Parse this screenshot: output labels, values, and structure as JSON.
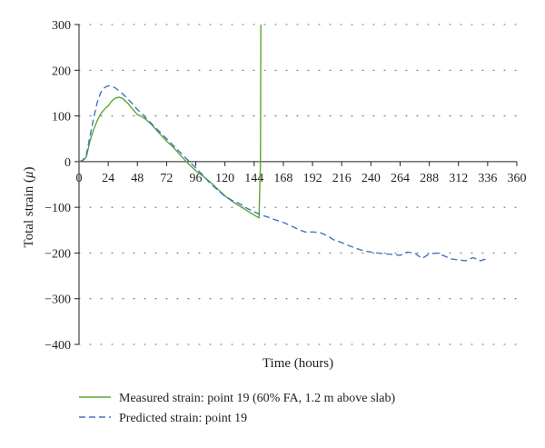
{
  "chart_data": {
    "type": "line",
    "title": "",
    "xlabel": "Time (hours)",
    "ylabel_prefix": "Total strain (",
    "ylabel_unit": "μ",
    "ylabel_suffix": ")",
    "xlim": [
      0,
      360
    ],
    "ylim": [
      -400,
      300
    ],
    "xticks": [
      0,
      24,
      48,
      72,
      96,
      120,
      144,
      168,
      192,
      216,
      240,
      264,
      288,
      312,
      336,
      360
    ],
    "yticks": [
      300,
      200,
      100,
      0,
      -100,
      -200,
      -300,
      -400
    ],
    "grid": "horizontal dotted",
    "legend_placement": "bottom",
    "series": [
      {
        "name": "Measured strain: point 19 (60% FA, 1.2 m above slab)",
        "color": "#5aa832",
        "dash": "solid",
        "x": [
          0,
          3,
          6,
          9,
          12,
          15,
          18,
          21,
          24,
          27,
          30,
          33,
          36,
          40,
          44,
          48,
          52,
          56,
          60,
          66,
          72,
          78,
          84,
          90,
          96,
          102,
          108,
          114,
          120,
          126,
          132,
          138,
          144,
          148,
          149.2,
          149.5
        ],
        "y": [
          0,
          2,
          10,
          45,
          70,
          90,
          105,
          115,
          122,
          133,
          139,
          141,
          138,
          128,
          115,
          103,
          98,
          90,
          80,
          62,
          45,
          30,
          12,
          -5,
          -20,
          -32,
          -45,
          -60,
          -75,
          -87,
          -97,
          -107,
          -117,
          -123,
          0,
          300
        ]
      },
      {
        "name": "Predicted strain: point 19",
        "color": "#4472c4",
        "dash": "dashed",
        "x": [
          0,
          3,
          6,
          9,
          12,
          15,
          18,
          21,
          24,
          27,
          30,
          33,
          36,
          40,
          44,
          48,
          52,
          56,
          60,
          66,
          72,
          78,
          84,
          90,
          96,
          102,
          108,
          114,
          120,
          126,
          132,
          138,
          144,
          150,
          156,
          162,
          168,
          174,
          180,
          186,
          192,
          198,
          204,
          210,
          216,
          222,
          228,
          234,
          240,
          246,
          252,
          258,
          264,
          270,
          276,
          282,
          288,
          294,
          300,
          306,
          312,
          318,
          324,
          330,
          336
        ],
        "y": [
          0,
          3,
          15,
          55,
          95,
          130,
          152,
          162,
          166,
          165,
          161,
          155,
          148,
          138,
          126,
          114,
          104,
          93,
          82,
          66,
          50,
          34,
          18,
          2,
          -14,
          -30,
          -48,
          -62,
          -76,
          -85,
          -92,
          -102,
          -110,
          -117,
          -122,
          -128,
          -133,
          -140,
          -148,
          -154,
          -154,
          -155,
          -162,
          -172,
          -177,
          -184,
          -190,
          -195,
          -198,
          -200,
          -202,
          -203,
          -205,
          -198,
          -200,
          -212,
          -202,
          -200,
          -206,
          -213,
          -215,
          -217,
          -210,
          -217,
          -212
        ]
      }
    ]
  }
}
